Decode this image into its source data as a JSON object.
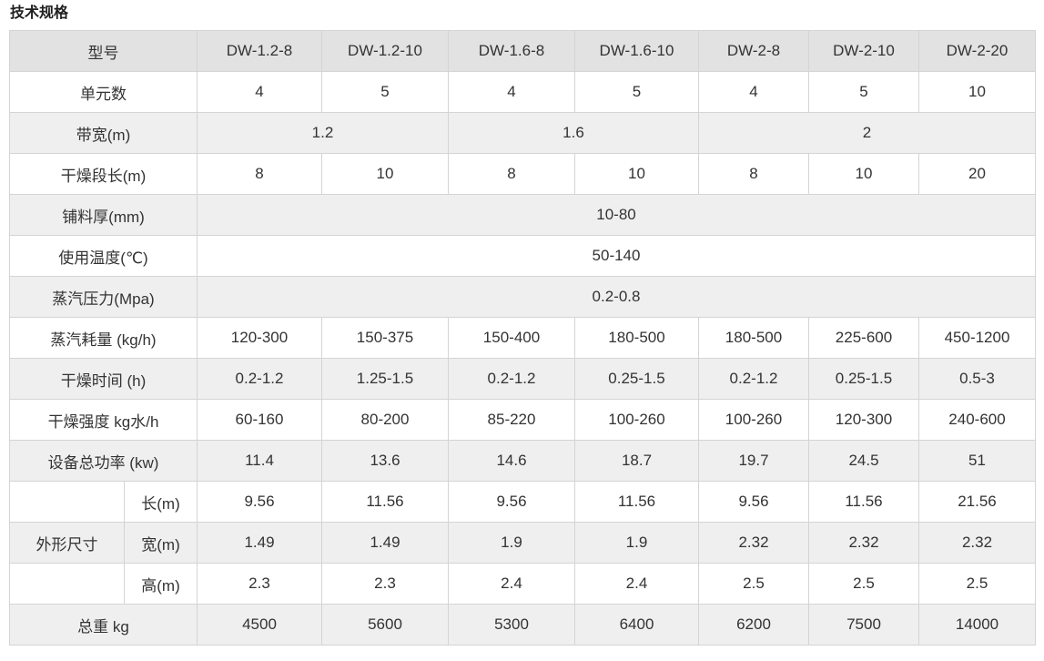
{
  "page": {
    "title": "技术规格"
  },
  "colors": {
    "header_bg": "#e2e2e2",
    "stripe_bg": "#efefef",
    "row_bg": "#ffffff",
    "border": "#d4d4d4",
    "text": "#333333"
  },
  "table": {
    "header": {
      "cells": [
        {
          "t": "型号",
          "c": 2
        },
        {
          "t": "DW-1.2-8"
        },
        {
          "t": "DW-1.2-10"
        },
        {
          "t": "DW-1.6-8"
        },
        {
          "t": "DW-1.6-10"
        },
        {
          "t": "DW-2-8"
        },
        {
          "t": "DW-2-10"
        },
        {
          "t": "DW-2-20"
        }
      ]
    },
    "rows": [
      {
        "name": "unit-count",
        "cells": [
          {
            "t": "单元数",
            "c": 2,
            "h": 1
          },
          {
            "t": "4"
          },
          {
            "t": "5"
          },
          {
            "t": "4"
          },
          {
            "t": "5"
          },
          {
            "t": "4"
          },
          {
            "t": "5"
          },
          {
            "t": "10"
          }
        ]
      },
      {
        "name": "belt-width",
        "cells": [
          {
            "t": "带宽(m)",
            "c": 2,
            "h": 1
          },
          {
            "t": "1.2",
            "c": 2
          },
          {
            "t": "1.6",
            "c": 2
          },
          {
            "t": "2",
            "c": 3
          }
        ]
      },
      {
        "name": "drying-section-length",
        "cells": [
          {
            "t": "干燥段长(m)",
            "c": 2,
            "h": 1
          },
          {
            "t": "8"
          },
          {
            "t": "10"
          },
          {
            "t": "8"
          },
          {
            "t": "10"
          },
          {
            "t": "8"
          },
          {
            "t": "10"
          },
          {
            "t": "20"
          }
        ]
      },
      {
        "name": "material-thickness",
        "cells": [
          {
            "t": "铺料厚(mm)",
            "c": 2,
            "h": 1
          },
          {
            "t": "10-80",
            "c": 7
          }
        ]
      },
      {
        "name": "operating-temperature",
        "cells": [
          {
            "t": "使用温度(℃)",
            "c": 2,
            "h": 1
          },
          {
            "t": "50-140",
            "c": 7
          }
        ]
      },
      {
        "name": "steam-pressure",
        "cells": [
          {
            "t": "蒸汽压力(Mpa)",
            "c": 2,
            "h": 1
          },
          {
            "t": "0.2-0.8",
            "c": 7
          }
        ]
      },
      {
        "name": "steam-consumption",
        "cells": [
          {
            "t": "蒸汽耗量 (kg/h)",
            "c": 2,
            "h": 1
          },
          {
            "t": "120-300"
          },
          {
            "t": "150-375"
          },
          {
            "t": "150-400"
          },
          {
            "t": "180-500"
          },
          {
            "t": "180-500"
          },
          {
            "t": "225-600"
          },
          {
            "t": "450-1200"
          }
        ]
      },
      {
        "name": "drying-time",
        "cells": [
          {
            "t": "干燥时间 (h)",
            "c": 2,
            "h": 1
          },
          {
            "t": "0.2-1.2"
          },
          {
            "t": "1.25-1.5"
          },
          {
            "t": "0.2-1.2"
          },
          {
            "t": "0.25-1.5"
          },
          {
            "t": "0.2-1.2"
          },
          {
            "t": "0.25-1.5"
          },
          {
            "t": "0.5-3"
          }
        ]
      },
      {
        "name": "drying-intensity",
        "cells": [
          {
            "t": "干燥强度 kg水/h",
            "c": 2,
            "h": 1
          },
          {
            "t": "60-160"
          },
          {
            "t": "80-200"
          },
          {
            "t": "85-220"
          },
          {
            "t": "100-260"
          },
          {
            "t": "100-260"
          },
          {
            "t": "120-300"
          },
          {
            "t": "240-600"
          }
        ]
      },
      {
        "name": "total-power",
        "cells": [
          {
            "t": "设备总功率 (kw)",
            "c": 2,
            "h": 1
          },
          {
            "t": "11.4"
          },
          {
            "t": "13.6"
          },
          {
            "t": "14.6"
          },
          {
            "t": "18.7"
          },
          {
            "t": "19.7"
          },
          {
            "t": "24.5"
          },
          {
            "t": "51"
          }
        ]
      },
      {
        "name": "dimension-length",
        "cells": [
          {
            "t": "",
            "h": 1
          },
          {
            "t": "长(m)",
            "h": 1
          },
          {
            "t": "9.56"
          },
          {
            "t": "11.56"
          },
          {
            "t": "9.56"
          },
          {
            "t": "11.56"
          },
          {
            "t": "9.56"
          },
          {
            "t": "11.56"
          },
          {
            "t": "21.56"
          }
        ]
      },
      {
        "name": "dimension-width",
        "cells": [
          {
            "t": "外形尺寸",
            "h": 1
          },
          {
            "t": "宽(m)",
            "h": 1
          },
          {
            "t": "1.49"
          },
          {
            "t": "1.49"
          },
          {
            "t": "1.9"
          },
          {
            "t": "1.9"
          },
          {
            "t": "2.32"
          },
          {
            "t": "2.32"
          },
          {
            "t": "2.32"
          }
        ]
      },
      {
        "name": "dimension-height",
        "cells": [
          {
            "t": "",
            "h": 1
          },
          {
            "t": "高(m)",
            "h": 1
          },
          {
            "t": "2.3"
          },
          {
            "t": "2.3"
          },
          {
            "t": "2.4"
          },
          {
            "t": "2.4"
          },
          {
            "t": "2.5"
          },
          {
            "t": "2.5"
          },
          {
            "t": "2.5"
          }
        ]
      },
      {
        "name": "total-weight",
        "cells": [
          {
            "t": "总重 kg",
            "c": 2,
            "h": 1
          },
          {
            "t": "4500"
          },
          {
            "t": "5600"
          },
          {
            "t": "5300"
          },
          {
            "t": "6400"
          },
          {
            "t": "6200"
          },
          {
            "t": "7500"
          },
          {
            "t": "14000"
          }
        ]
      }
    ]
  }
}
